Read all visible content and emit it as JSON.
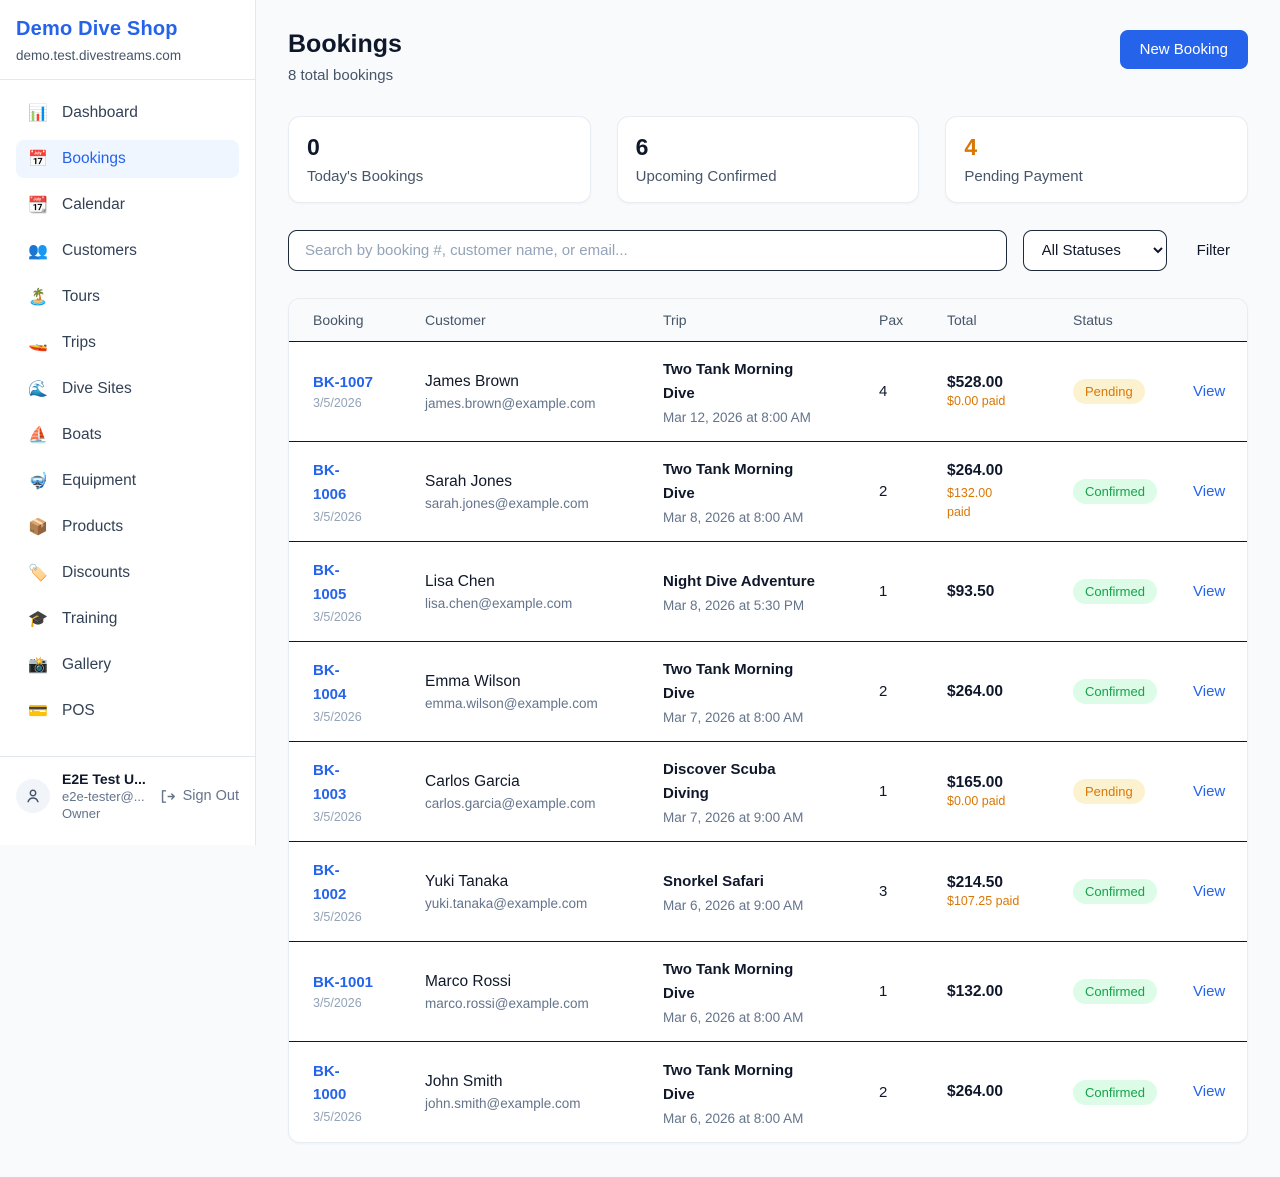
{
  "colors": {
    "accent_blue": "#2563eb",
    "pending_text": "#d97706",
    "pending_bg": "#fdf2d0",
    "confirmed_text": "#16a34a",
    "confirmed_bg": "#dcfce7",
    "page_bg": "#f8fafc"
  },
  "sidebar": {
    "title": "Demo Dive Shop",
    "domain": "demo.test.divestreams.com",
    "items": [
      {
        "icon": "📊",
        "icon_name": "dashboard-icon",
        "label": "Dashboard",
        "active": false
      },
      {
        "icon": "📅",
        "icon_name": "bookings-icon",
        "label": "Bookings",
        "active": true
      },
      {
        "icon": "📆",
        "icon_name": "calendar-icon",
        "label": "Calendar",
        "active": false
      },
      {
        "icon": "👥",
        "icon_name": "customers-icon",
        "label": "Customers",
        "active": false
      },
      {
        "icon": "🏝️",
        "icon_name": "tours-icon",
        "label": "Tours",
        "active": false
      },
      {
        "icon": "🚤",
        "icon_name": "trips-icon",
        "label": "Trips",
        "active": false
      },
      {
        "icon": "🌊",
        "icon_name": "dive-sites-icon",
        "label": "Dive Sites",
        "active": false
      },
      {
        "icon": "⛵",
        "icon_name": "boats-icon",
        "label": "Boats",
        "active": false
      },
      {
        "icon": "🤿",
        "icon_name": "equipment-icon",
        "label": "Equipment",
        "active": false
      },
      {
        "icon": "📦",
        "icon_name": "products-icon",
        "label": "Products",
        "active": false
      },
      {
        "icon": "🏷️",
        "icon_name": "discounts-icon",
        "label": "Discounts",
        "active": false
      },
      {
        "icon": "🎓",
        "icon_name": "training-icon",
        "label": "Training",
        "active": false
      },
      {
        "icon": "📸",
        "icon_name": "gallery-icon",
        "label": "Gallery",
        "active": false
      },
      {
        "icon": "💳",
        "icon_name": "pos-icon",
        "label": "POS",
        "active": false
      }
    ],
    "user": {
      "name": "E2E Test U...",
      "email": "e2e-tester@...",
      "role": "Owner",
      "signout_label": "Sign Out"
    }
  },
  "header": {
    "title": "Bookings",
    "subtitle": "8 total bookings",
    "new_booking_label": "New Booking"
  },
  "stats": [
    {
      "value": "0",
      "label": "Today's Bookings",
      "accent": false
    },
    {
      "value": "6",
      "label": "Upcoming Confirmed",
      "accent": false
    },
    {
      "value": "4",
      "label": "Pending Payment",
      "accent": true
    }
  ],
  "controls": {
    "search_placeholder": "Search by booking #, customer name, or email...",
    "status_selected": "All Statuses",
    "filter_label": "Filter"
  },
  "table": {
    "columns": [
      "Booking",
      "Customer",
      "Trip",
      "Pax",
      "Total",
      "Status"
    ],
    "rows": [
      {
        "id": "BK-1007",
        "id_wrap": false,
        "date": "3/5/2026",
        "name": "James Brown",
        "email": "james.brown@example.com",
        "trip": "Two Tank Morning Dive",
        "trip_time": "Mar 12, 2026 at 8:00 AM",
        "pax": "4",
        "total": "$528.00",
        "paid": "$0.00 paid",
        "paid_wrap": false,
        "status": "Pending",
        "view_label": "View"
      },
      {
        "id": "BK-1006",
        "id_wrap": true,
        "date": "3/5/2026",
        "name": "Sarah Jones",
        "email": "sarah.jones@example.com",
        "trip": "Two Tank Morning Dive",
        "trip_time": "Mar 8, 2026 at 8:00 AM",
        "pax": "2",
        "total": "$264.00",
        "paid": "$132.00 paid",
        "paid_wrap": true,
        "status": "Confirmed",
        "view_label": "View"
      },
      {
        "id": "BK-1005",
        "id_wrap": true,
        "date": "3/5/2026",
        "name": "Lisa Chen",
        "email": "lisa.chen@example.com",
        "trip": "Night Dive Adventure",
        "trip_time": "Mar 8, 2026 at 5:30 PM",
        "pax": "1",
        "total": "$93.50",
        "paid": "",
        "paid_wrap": false,
        "status": "Confirmed",
        "view_label": "View"
      },
      {
        "id": "BK-1004",
        "id_wrap": true,
        "date": "3/5/2026",
        "name": "Emma Wilson",
        "email": "emma.wilson@example.com",
        "trip": "Two Tank Morning Dive",
        "trip_time": "Mar 7, 2026 at 8:00 AM",
        "pax": "2",
        "total": "$264.00",
        "paid": "",
        "paid_wrap": false,
        "status": "Confirmed",
        "view_label": "View"
      },
      {
        "id": "BK-1003",
        "id_wrap": true,
        "date": "3/5/2026",
        "name": "Carlos Garcia",
        "email": "carlos.garcia@example.com",
        "trip": "Discover Scuba Diving",
        "trip_time": "Mar 7, 2026 at 9:00 AM",
        "pax": "1",
        "total": "$165.00",
        "paid": "$0.00 paid",
        "paid_wrap": false,
        "status": "Pending",
        "view_label": "View"
      },
      {
        "id": "BK-1002",
        "id_wrap": true,
        "date": "3/5/2026",
        "name": "Yuki Tanaka",
        "email": "yuki.tanaka@example.com",
        "trip": "Snorkel Safari",
        "trip_time": "Mar 6, 2026 at 9:00 AM",
        "pax": "3",
        "total": "$214.50",
        "paid": "$107.25 paid",
        "paid_wrap": false,
        "status": "Confirmed",
        "view_label": "View"
      },
      {
        "id": "BK-1001",
        "id_wrap": false,
        "date": "3/5/2026",
        "name": "Marco Rossi",
        "email": "marco.rossi@example.com",
        "trip": "Two Tank Morning Dive",
        "trip_time": "Mar 6, 2026 at 8:00 AM",
        "pax": "1",
        "total": "$132.00",
        "paid": "",
        "paid_wrap": false,
        "status": "Confirmed",
        "view_label": "View"
      },
      {
        "id": "BK-1000",
        "id_wrap": true,
        "date": "3/5/2026",
        "name": "John Smith",
        "email": "john.smith@example.com",
        "trip": "Two Tank Morning Dive",
        "trip_time": "Mar 6, 2026 at 8:00 AM",
        "pax": "2",
        "total": "$264.00",
        "paid": "",
        "paid_wrap": false,
        "status": "Confirmed",
        "view_label": "View"
      }
    ]
  }
}
